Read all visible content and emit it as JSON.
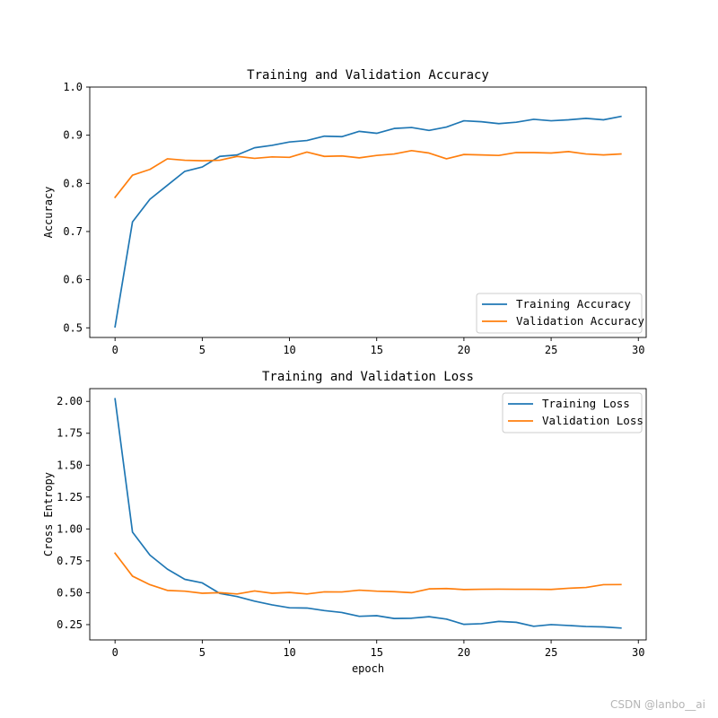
{
  "watermark": "CSDN @lanbo__ai",
  "colors": {
    "training": "#1f77b4",
    "validation": "#ff7f0e"
  },
  "chart_data": [
    {
      "type": "line",
      "title": "Training and Validation Accuracy",
      "xlabel": "",
      "ylabel": "Accuracy",
      "xlim": [
        -1.45,
        30.45
      ],
      "ylim": [
        0.48,
        1.0
      ],
      "xticks": [
        0,
        5,
        10,
        15,
        20,
        25,
        30
      ],
      "yticks": [
        0.5,
        0.6,
        0.7,
        0.8,
        0.9,
        1.0
      ],
      "ytick_labels": [
        "0.5",
        "0.6",
        "0.7",
        "0.8",
        "0.9",
        "1.0"
      ],
      "legend_position": "lower-right",
      "grid": false,
      "x": [
        0,
        1,
        2,
        3,
        4,
        5,
        6,
        7,
        8,
        9,
        10,
        11,
        12,
        13,
        14,
        15,
        16,
        17,
        18,
        19,
        20,
        21,
        22,
        23,
        24,
        25,
        26,
        27,
        28,
        29
      ],
      "series": [
        {
          "name": "Training Accuracy",
          "color": "#1f77b4",
          "values": [
            0.502,
            0.72,
            0.767,
            0.796,
            0.825,
            0.834,
            0.856,
            0.859,
            0.874,
            0.879,
            0.886,
            0.889,
            0.898,
            0.897,
            0.908,
            0.904,
            0.914,
            0.916,
            0.91,
            0.917,
            0.93,
            0.928,
            0.924,
            0.927,
            0.933,
            0.93,
            0.932,
            0.935,
            0.932,
            0.939
          ]
        },
        {
          "name": "Validation Accuracy",
          "color": "#ff7f0e",
          "values": [
            0.771,
            0.817,
            0.829,
            0.851,
            0.848,
            0.847,
            0.848,
            0.856,
            0.852,
            0.855,
            0.854,
            0.865,
            0.856,
            0.857,
            0.853,
            0.858,
            0.861,
            0.868,
            0.863,
            0.851,
            0.86,
            0.859,
            0.858,
            0.864,
            0.864,
            0.863,
            0.866,
            0.861,
            0.859,
            0.861
          ]
        }
      ]
    },
    {
      "type": "line",
      "title": "Training and Validation Loss",
      "xlabel": "epoch",
      "ylabel": "Cross Entropy",
      "xlim": [
        -1.45,
        30.45
      ],
      "ylim": [
        0.13,
        2.1
      ],
      "xticks": [
        0,
        5,
        10,
        15,
        20,
        25,
        30
      ],
      "yticks": [
        0.25,
        0.5,
        0.75,
        1.0,
        1.25,
        1.5,
        1.75,
        2.0
      ],
      "ytick_labels": [
        "0.25",
        "0.50",
        "0.75",
        "1.00",
        "1.25",
        "1.50",
        "1.75",
        "2.00"
      ],
      "legend_position": "upper-right",
      "grid": false,
      "x": [
        0,
        1,
        2,
        3,
        4,
        5,
        6,
        7,
        8,
        9,
        10,
        11,
        12,
        13,
        14,
        15,
        16,
        17,
        18,
        19,
        20,
        21,
        22,
        23,
        24,
        25,
        26,
        27,
        28,
        29
      ],
      "series": [
        {
          "name": "Training Loss",
          "color": "#1f77b4",
          "values": [
            2.02,
            0.975,
            0.795,
            0.685,
            0.605,
            0.577,
            0.495,
            0.47,
            0.434,
            0.405,
            0.382,
            0.38,
            0.36,
            0.345,
            0.315,
            0.32,
            0.298,
            0.3,
            0.312,
            0.293,
            0.252,
            0.257,
            0.275,
            0.268,
            0.237,
            0.25,
            0.243,
            0.235,
            0.232,
            0.223
          ]
        },
        {
          "name": "Validation Loss",
          "color": "#ff7f0e",
          "values": [
            0.81,
            0.63,
            0.563,
            0.518,
            0.512,
            0.496,
            0.5,
            0.49,
            0.514,
            0.496,
            0.502,
            0.49,
            0.507,
            0.506,
            0.52,
            0.512,
            0.508,
            0.5,
            0.53,
            0.533,
            0.525,
            0.527,
            0.528,
            0.527,
            0.527,
            0.526,
            0.535,
            0.541,
            0.563,
            0.564
          ]
        }
      ]
    }
  ]
}
